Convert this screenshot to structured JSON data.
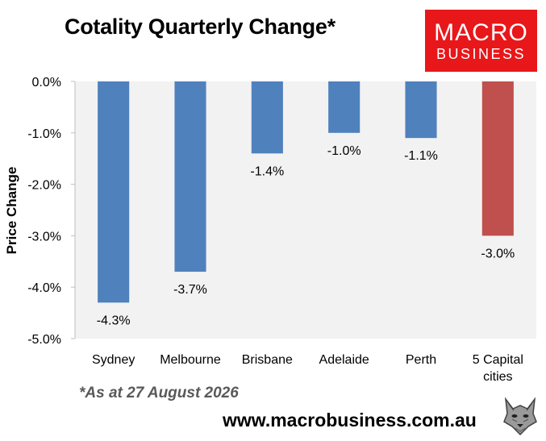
{
  "header": {
    "title": "Cotality Quarterly Change*"
  },
  "logo": {
    "line1": "MACRO",
    "line2": "BUSINESS",
    "bg_color": "#e8171a"
  },
  "footnote": "*As at 27 August 2026",
  "website": "www.macrobusiness.com.au",
  "chart_data": {
    "type": "bar",
    "categories": [
      "Sydney",
      "Melbourne",
      "Brisbane",
      "Adelaide",
      "Perth",
      "5 Capital cities"
    ],
    "category_lines": [
      [
        "Sydney"
      ],
      [
        "Melbourne"
      ],
      [
        "Brisbane"
      ],
      [
        "Adelaide"
      ],
      [
        "Perth"
      ],
      [
        "5 Capital",
        "cities"
      ]
    ],
    "values": [
      -4.3,
      -3.7,
      -1.4,
      -1.0,
      -1.1,
      -3.0
    ],
    "data_labels": [
      "-4.3%",
      "-3.7%",
      "-1.4%",
      "-1.0%",
      "-1.1%",
      "-3.0%"
    ],
    "bar_colors": [
      "#4f81bd",
      "#4f81bd",
      "#4f81bd",
      "#4f81bd",
      "#4f81bd",
      "#c0504d"
    ],
    "ylabel": "Price Change",
    "ylim": [
      -5.0,
      0.0
    ],
    "yticks": [
      0,
      -1,
      -2,
      -3,
      -4,
      -5
    ],
    "ytick_labels": [
      "0.0%",
      "-1.0%",
      "-2.0%",
      "-3.0%",
      "-4.0%",
      "-5.0%"
    ],
    "plot_background": "#f2f2f2",
    "grid": false
  }
}
